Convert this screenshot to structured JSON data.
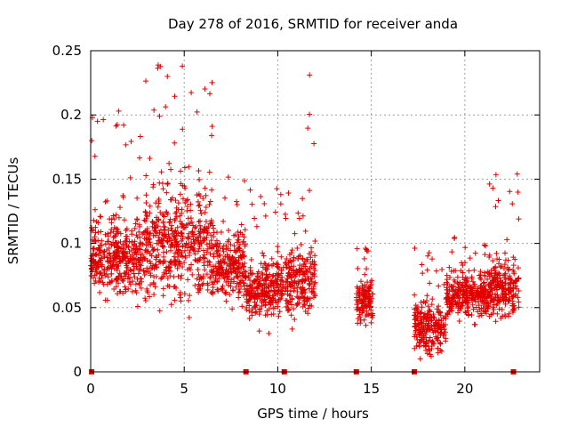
{
  "chart_data": {
    "type": "scatter",
    "title": "Day 278 of 2016, SRMTID for receiver anda",
    "xlabel": "GPS time / hours",
    "ylabel": "SRMTID / TECUs",
    "xlim": [
      0,
      24
    ],
    "ylim": [
      0,
      0.25
    ],
    "x_ticks": [
      0,
      5,
      10,
      15,
      20
    ],
    "x_tick_labels": [
      "0",
      "5",
      "10",
      "15",
      "20"
    ],
    "y_ticks": [
      0,
      0.05,
      0.1,
      0.15,
      0.2,
      0.25
    ],
    "y_tick_labels": [
      "0",
      "0.05",
      "0.1",
      "0.15",
      "0.2",
      "0.25"
    ],
    "grid": true,
    "marker": "+",
    "color": "#e00000",
    "data_gap_markers_x": [
      0.05,
      8.3,
      10.35,
      14.2,
      17.3,
      22.6
    ],
    "segments": [
      {
        "x_start": 0.0,
        "x_end": 2.9,
        "baseline": 0.09,
        "spread": 0.03,
        "peak": 0.2
      },
      {
        "x_start": 2.9,
        "x_end": 6.5,
        "baseline": 0.1,
        "spread": 0.045,
        "peak": 0.24
      },
      {
        "x_start": 6.5,
        "x_end": 8.3,
        "baseline": 0.085,
        "spread": 0.03,
        "peak": 0.16
      },
      {
        "x_start": 8.3,
        "x_end": 10.3,
        "baseline": 0.065,
        "spread": 0.025,
        "peak": 0.145
      },
      {
        "x_start": 10.4,
        "x_end": 11.3,
        "baseline": 0.07,
        "spread": 0.025,
        "peak": 0.14
      },
      {
        "x_start": 11.3,
        "x_end": 12.0,
        "baseline": 0.07,
        "spread": 0.03,
        "peak": 0.23
      },
      {
        "x_start": 14.2,
        "x_end": 15.1,
        "baseline": 0.055,
        "spread": 0.02,
        "peak": 0.1
      },
      {
        "x_start": 17.3,
        "x_end": 19.0,
        "baseline": 0.035,
        "spread": 0.02,
        "peak": 0.1
      },
      {
        "x_start": 19.0,
        "x_end": 21.3,
        "baseline": 0.06,
        "spread": 0.018,
        "peak": 0.105
      },
      {
        "x_start": 21.3,
        "x_end": 22.9,
        "baseline": 0.065,
        "spread": 0.022,
        "peak": 0.155
      }
    ],
    "notable_points": [
      {
        "x": 4.9,
        "y": 0.238
      },
      {
        "x": 11.7,
        "y": 0.231
      },
      {
        "x": 4.1,
        "y": 0.23
      },
      {
        "x": 1.5,
        "y": 0.203
      },
      {
        "x": 22.8,
        "y": 0.154
      },
      {
        "x": 21.5,
        "y": 0.143
      },
      {
        "x": 18.2,
        "y": 0.012
      }
    ]
  }
}
